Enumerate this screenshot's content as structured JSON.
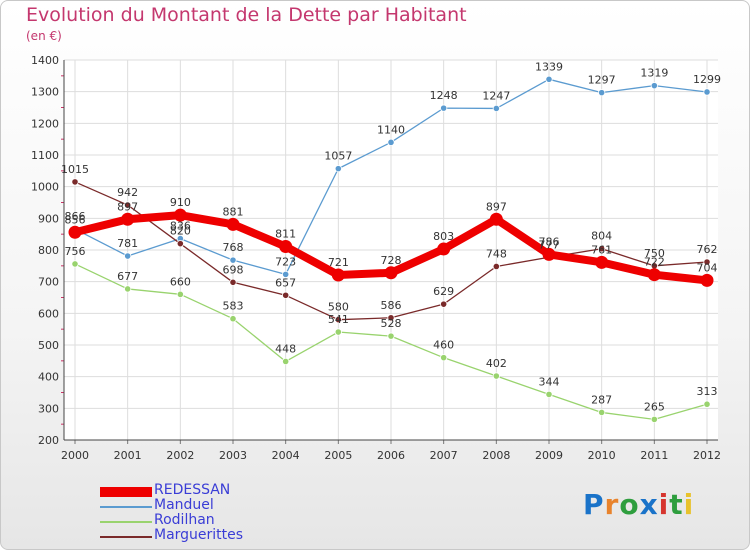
{
  "title": "Evolution du Montant de la Dette par Habitant",
  "subtitle": "(en €)",
  "logo": {
    "text": "Proxiti",
    "colors": [
      "#1a73c9",
      "#e8832c",
      "#2e9e3e",
      "#1a73c9",
      "#d6352e",
      "#2e9e3e",
      "#e8c22c"
    ]
  },
  "chart_data": {
    "type": "line",
    "title": "Evolution du Montant de la Dette par Habitant",
    "subtitle": "(en €)",
    "xlabel": "",
    "ylabel": "",
    "categories": [
      "2000",
      "2001",
      "2002",
      "2003",
      "2004",
      "2005",
      "2006",
      "2007",
      "2008",
      "2009",
      "2010",
      "2011",
      "2012"
    ],
    "ylim": [
      200,
      1400
    ],
    "yticks": [
      200,
      300,
      400,
      500,
      600,
      700,
      800,
      900,
      1000,
      1100,
      1200,
      1300,
      1400
    ],
    "grid": true,
    "legend_position": "bottom-left",
    "series": [
      {
        "name": "REDESSAN",
        "color": "#ee0000",
        "emphasis": true,
        "values": [
          856,
          897,
          910,
          881,
          811,
          721,
          728,
          803,
          897,
          786,
          761,
          722,
          704
        ],
        "labels": [
          "856",
          "897",
          "910",
          "881",
          "811",
          "721",
          "728",
          "803",
          "897",
          "786",
          "761",
          "722",
          "704"
        ]
      },
      {
        "name": "Manduel",
        "color": "#5b9bd0",
        "emphasis": false,
        "values": [
          866,
          781,
          836,
          768,
          723,
          1057,
          1140,
          1248,
          1247,
          1339,
          1297,
          1319,
          1299
        ],
        "labels": [
          "866",
          "781",
          "836",
          "768",
          "723",
          "1057",
          "1140",
          "1248",
          "1247",
          "1339",
          "1297",
          "1319",
          "1299"
        ]
      },
      {
        "name": "Rodilhan",
        "color": "#99d36e",
        "emphasis": false,
        "values": [
          756,
          677,
          660,
          583,
          448,
          541,
          528,
          460,
          402,
          344,
          287,
          265,
          313
        ],
        "labels": [
          "756",
          "677",
          "660",
          "583",
          "448",
          "541",
          "528",
          "460",
          "402",
          "344",
          "287",
          "265",
          "313"
        ]
      },
      {
        "name": "Marguerittes",
        "color": "#7a2a2a",
        "emphasis": false,
        "values": [
          1015,
          942,
          820,
          698,
          657,
          580,
          586,
          629,
          748,
          777,
          804,
          750,
          762
        ],
        "labels": [
          "1015",
          "942",
          "820",
          "698",
          "657",
          "580",
          "586",
          "629",
          "748",
          "777",
          "804",
          "750",
          "762"
        ]
      }
    ]
  }
}
